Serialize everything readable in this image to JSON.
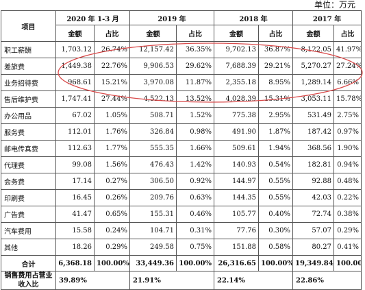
{
  "unit_label": "单位：万元",
  "header": {
    "item": "项目",
    "periods": [
      "2020 年 1-3 月",
      "2019 年",
      "2018 年",
      "2017 年"
    ],
    "amount": "金额",
    "ratio": "占比"
  },
  "rows": [
    {
      "label": "职工薪酬",
      "v": [
        "1,703.12",
        "26.74%",
        "12,157.42",
        "36.35%",
        "9,702.13",
        "36.87%",
        "8,122.05",
        "41.97%"
      ]
    },
    {
      "label": "差旅费",
      "v": [
        "1,449.38",
        "22.76%",
        "9,906.53",
        "29.62%",
        "7,688.39",
        "29.21%",
        "5,270.27",
        "27.24%"
      ]
    },
    {
      "label": "业务招待费",
      "v": [
        "968.61",
        "15.21%",
        "3,970.08",
        "11.87%",
        "2,355.18",
        "8.95%",
        "1,289.14",
        "6.66%"
      ]
    },
    {
      "label": "售后维护费",
      "v": [
        "1,747.41",
        "27.44%",
        "4,522.13",
        "13.52%",
        "4,028.39",
        "15.31%",
        "3,053.11",
        "15.78%"
      ]
    },
    {
      "label": "办公用品",
      "v": [
        "67.02",
        "1.05%",
        "508.71",
        "1.52%",
        "775.38",
        "2.95%",
        "531.49",
        "2.75%"
      ]
    },
    {
      "label": "服务费",
      "v": [
        "112.01",
        "1.76%",
        "326.84",
        "0.98%",
        "491.90",
        "1.87%",
        "187.42",
        "0.97%"
      ]
    },
    {
      "label": "邮电传真费",
      "v": [
        "112.63",
        "1.77%",
        "555.35",
        "1.66%",
        "509.61",
        "1.94%",
        "368.56",
        "1.90%"
      ]
    },
    {
      "label": "代理费",
      "v": [
        "99.08",
        "1.56%",
        "476.43",
        "1.42%",
        "140.93",
        "0.54%",
        "182.81",
        "0.94%"
      ]
    },
    {
      "label": "会务费",
      "v": [
        "17.14",
        "0.27%",
        "306.50",
        "0.92%",
        "144.97",
        "0.55%",
        "92.88",
        "0.48%"
      ]
    },
    {
      "label": "印刷费",
      "v": [
        "16.45",
        "0.26%",
        "209.76",
        "0.63%",
        "144.35",
        "0.55%",
        "42.03",
        "0.22%"
      ]
    },
    {
      "label": "广告费",
      "v": [
        "41.47",
        "0.65%",
        "155.31",
        "0.46%",
        "105.77",
        "0.40%",
        "72.74",
        "0.38%"
      ]
    },
    {
      "label": "汽车费用",
      "v": [
        "15.58",
        "0.24%",
        "104.71",
        "0.31%",
        "77.76",
        "0.30%",
        "57.07",
        "0.29%"
      ]
    },
    {
      "label": "其他",
      "v": [
        "18.26",
        "0.29%",
        "249.58",
        "0.75%",
        "151.88",
        "0.58%",
        "80.27",
        "0.41%"
      ]
    }
  ],
  "total": {
    "label": "合计",
    "v": [
      "6,368.18",
      "100.00%",
      "33,449.36",
      "100.00%",
      "26,316.65",
      "100.00%",
      "19,349.84",
      "100.00%"
    ]
  },
  "ratio_row": {
    "label": "销售费用占营业收入比",
    "v": [
      "39.89%",
      "21.91%",
      "22.14%",
      "22.86%"
    ]
  },
  "colors": {
    "border": "#555555",
    "highlight_oval": "#d94a4a"
  }
}
